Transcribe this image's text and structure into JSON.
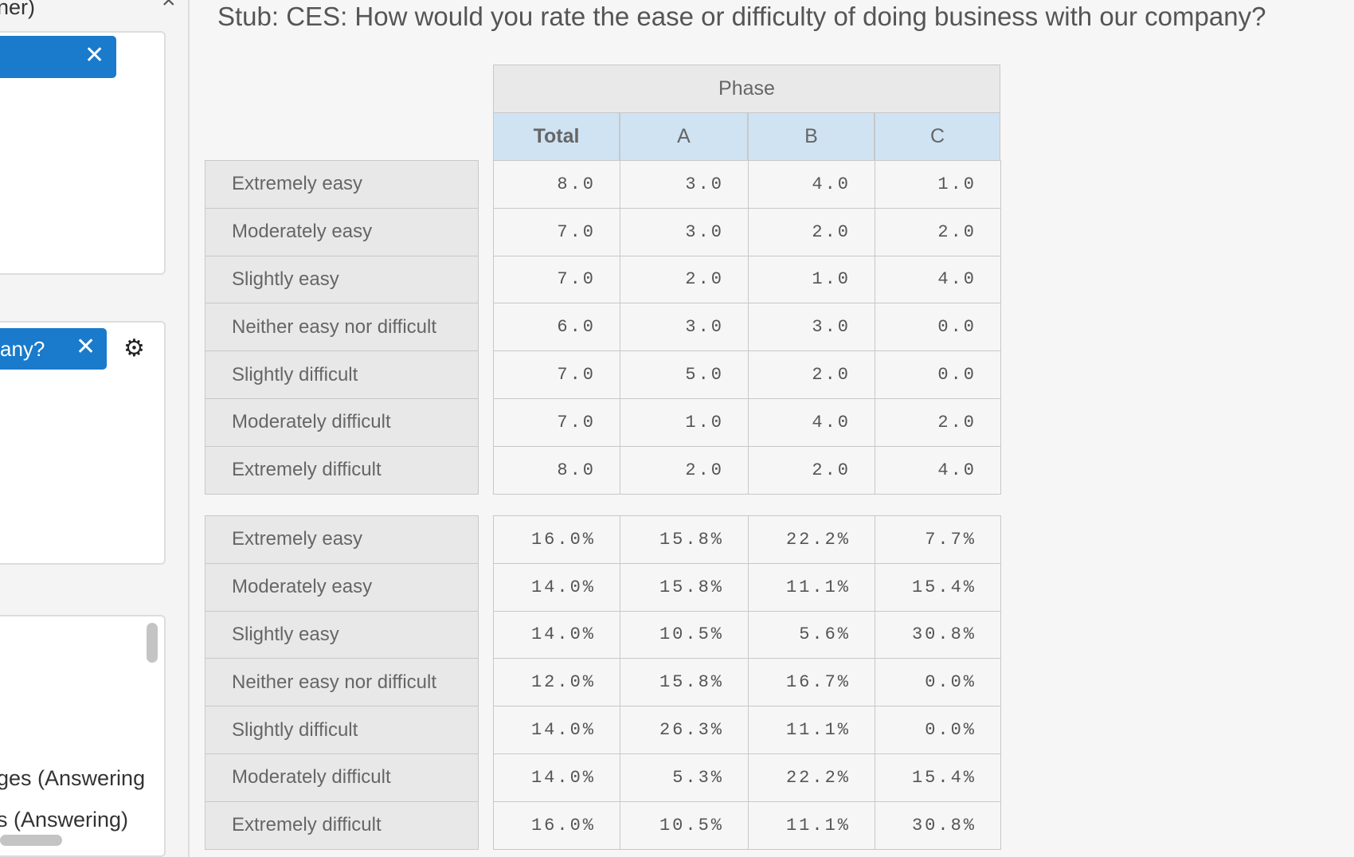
{
  "sidebar": {
    "texts": [
      "ner)",
      "any?",
      "ges (Answering",
      "s (Answering)"
    ]
  },
  "title": "Stub: CES: How would you rate the ease or difficulty of doing business with our company?",
  "table": {
    "group_header": "Phase",
    "columns": [
      "Total",
      "A",
      "B",
      "C"
    ],
    "blocks": [
      {
        "rows": [
          {
            "label": "Extremely easy",
            "cells": [
              "8.0",
              "3.0",
              "4.0",
              "1.0"
            ]
          },
          {
            "label": "Moderately easy",
            "cells": [
              "7.0",
              "3.0",
              "2.0",
              "2.0"
            ]
          },
          {
            "label": "Slightly easy",
            "cells": [
              "7.0",
              "2.0",
              "1.0",
              "4.0"
            ]
          },
          {
            "label": "Neither easy nor difficult",
            "cells": [
              "6.0",
              "3.0",
              "3.0",
              "0.0"
            ]
          },
          {
            "label": "Slightly difficult",
            "cells": [
              "7.0",
              "5.0",
              "2.0",
              "0.0"
            ]
          },
          {
            "label": "Moderately difficult",
            "cells": [
              "7.0",
              "1.0",
              "4.0",
              "2.0"
            ]
          },
          {
            "label": "Extremely difficult",
            "cells": [
              "8.0",
              "2.0",
              "2.0",
              "4.0"
            ]
          }
        ]
      },
      {
        "rows": [
          {
            "label": "Extremely easy",
            "cells": [
              "16.0%",
              "15.8%",
              "22.2%",
              "7.7%"
            ]
          },
          {
            "label": "Moderately easy",
            "cells": [
              "14.0%",
              "15.8%",
              "11.1%",
              "15.4%"
            ]
          },
          {
            "label": "Slightly easy",
            "cells": [
              "14.0%",
              "10.5%",
              "5.6%",
              "30.8%"
            ]
          },
          {
            "label": "Neither easy nor difficult",
            "cells": [
              "12.0%",
              "15.8%",
              "16.7%",
              "0.0%"
            ]
          },
          {
            "label": "Slightly difficult",
            "cells": [
              "14.0%",
              "26.3%",
              "11.1%",
              "0.0%"
            ]
          },
          {
            "label": "Moderately difficult",
            "cells": [
              "14.0%",
              "5.3%",
              "22.2%",
              "15.4%"
            ]
          },
          {
            "label": "Extremely difficult",
            "cells": [
              "16.0%",
              "10.5%",
              "11.1%",
              "30.8%"
            ]
          }
        ]
      }
    ]
  }
}
